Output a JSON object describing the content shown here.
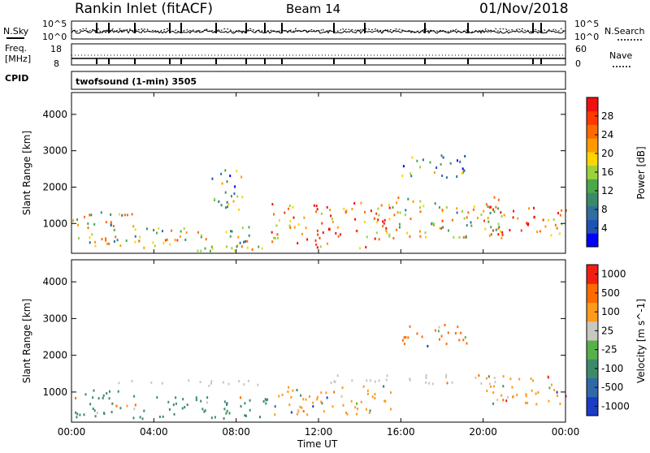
{
  "header": {
    "station": "Rankin Inlet (fitACF)",
    "beam": "Beam 14",
    "date": "01/Nov/2018"
  },
  "noise_panel": {
    "left_label": "N.Sky",
    "left_tick_top": "10^5",
    "left_tick_bottom": "10^0",
    "right_label": "N.Search",
    "right_tick_top": "10^5",
    "right_tick_bottom": "10^0"
  },
  "freq_panel": {
    "left_label_line1": "Freq.",
    "left_label_line2": "[MHz]",
    "left_tick_top": "18",
    "left_tick_bottom": "8",
    "right_label": "Nave",
    "right_tick_top": "60",
    "right_tick_bottom": "0"
  },
  "cpid_panel": {
    "label": "CPID",
    "mode_text": "twofsound (1-min) 3505"
  },
  "time_axis": {
    "label": "Time UT",
    "ticks": [
      "00:00",
      "04:00",
      "08:00",
      "12:00",
      "16:00",
      "20:00",
      "00:00"
    ]
  },
  "chart_data": [
    {
      "type": "heatmap",
      "title": "Power",
      "xlabel": "Time UT",
      "ylabel": "Slant Range [km]",
      "x_ticks": [
        "00:00",
        "04:00",
        "08:00",
        "12:00",
        "16:00",
        "20:00",
        "00:00"
      ],
      "y_ticks": [
        1000,
        2000,
        3000,
        4000
      ],
      "xlim_hours": [
        0,
        24
      ],
      "ylim_km": [
        180,
        4600
      ],
      "colorbar": {
        "label": "Power [dB]",
        "ticks": [
          "4",
          "8",
          "12",
          "16",
          "20",
          "24",
          "28"
        ],
        "colors": [
          "#0000ff",
          "#1f52b4",
          "#2f6e9e",
          "#3a8a6a",
          "#4ba94a",
          "#9bd23c",
          "#ffd400",
          "#ff9a00",
          "#ff6a00",
          "#ff3a00",
          "#f01010"
        ]
      },
      "echo_regions": [
        {
          "t_start": 0.0,
          "t_end": 3.2,
          "r_start": 300,
          "r_end": 1350,
          "level": 0.55
        },
        {
          "t_start": 3.2,
          "t_end": 9.5,
          "r_start": 250,
          "r_end": 950,
          "level": 0.6
        },
        {
          "t_start": 6.8,
          "t_end": 8.6,
          "r_start": 1400,
          "r_end": 2500,
          "level": 0.4
        },
        {
          "t_start": 9.6,
          "t_end": 15.5,
          "r_start": 350,
          "r_end": 1600,
          "level": 0.85
        },
        {
          "t_start": 15.5,
          "t_end": 21.0,
          "r_start": 600,
          "r_end": 1750,
          "level": 0.6
        },
        {
          "t_start": 16.0,
          "t_end": 19.2,
          "r_start": 2250,
          "r_end": 2900,
          "level": 0.4
        },
        {
          "t_start": 20.0,
          "t_end": 24.0,
          "r_start": 700,
          "r_end": 1500,
          "level": 0.9
        }
      ]
    },
    {
      "type": "heatmap",
      "title": "Velocity",
      "xlabel": "Time UT",
      "ylabel": "Slant Range [km]",
      "x_ticks": [
        "00:00",
        "04:00",
        "08:00",
        "12:00",
        "16:00",
        "20:00",
        "00:00"
      ],
      "y_ticks": [
        1000,
        2000,
        3000,
        4000
      ],
      "xlim_hours": [
        0,
        24
      ],
      "ylim_km": [
        180,
        4600
      ],
      "colorbar": {
        "label": "Velocity [m s^-1]",
        "ticks": [
          "1000",
          "500",
          "100",
          "25",
          "-25",
          "-100",
          "-500",
          "-1000"
        ],
        "colors": [
          "#1a3cc8",
          "#2f6aa6",
          "#3d8a6a",
          "#58b04a",
          "#c8c8c0",
          "#ff9a1a",
          "#ff6a00",
          "#f02010"
        ]
      },
      "echo_regions": [
        {
          "t_start": 0.0,
          "t_end": 3.2,
          "r_start": 300,
          "r_end": 1100,
          "level": "100"
        },
        {
          "t_start": 2.0,
          "t_end": 10.0,
          "r_start": 1200,
          "r_end": 1350,
          "level": "-25"
        },
        {
          "t_start": 3.2,
          "t_end": 9.5,
          "r_start": 300,
          "r_end": 900,
          "level": "100"
        },
        {
          "t_start": 9.6,
          "t_end": 15.5,
          "r_start": 400,
          "r_end": 1200,
          "level": "-100"
        },
        {
          "t_start": 12.0,
          "t_end": 21.0,
          "r_start": 1250,
          "r_end": 1500,
          "level": "-25"
        },
        {
          "t_start": 16.0,
          "t_end": 19.2,
          "r_start": 2250,
          "r_end": 2900,
          "level": "-500"
        },
        {
          "t_start": 20.0,
          "t_end": 24.0,
          "r_start": 700,
          "r_end": 1500,
          "level": "-100"
        }
      ]
    }
  ]
}
